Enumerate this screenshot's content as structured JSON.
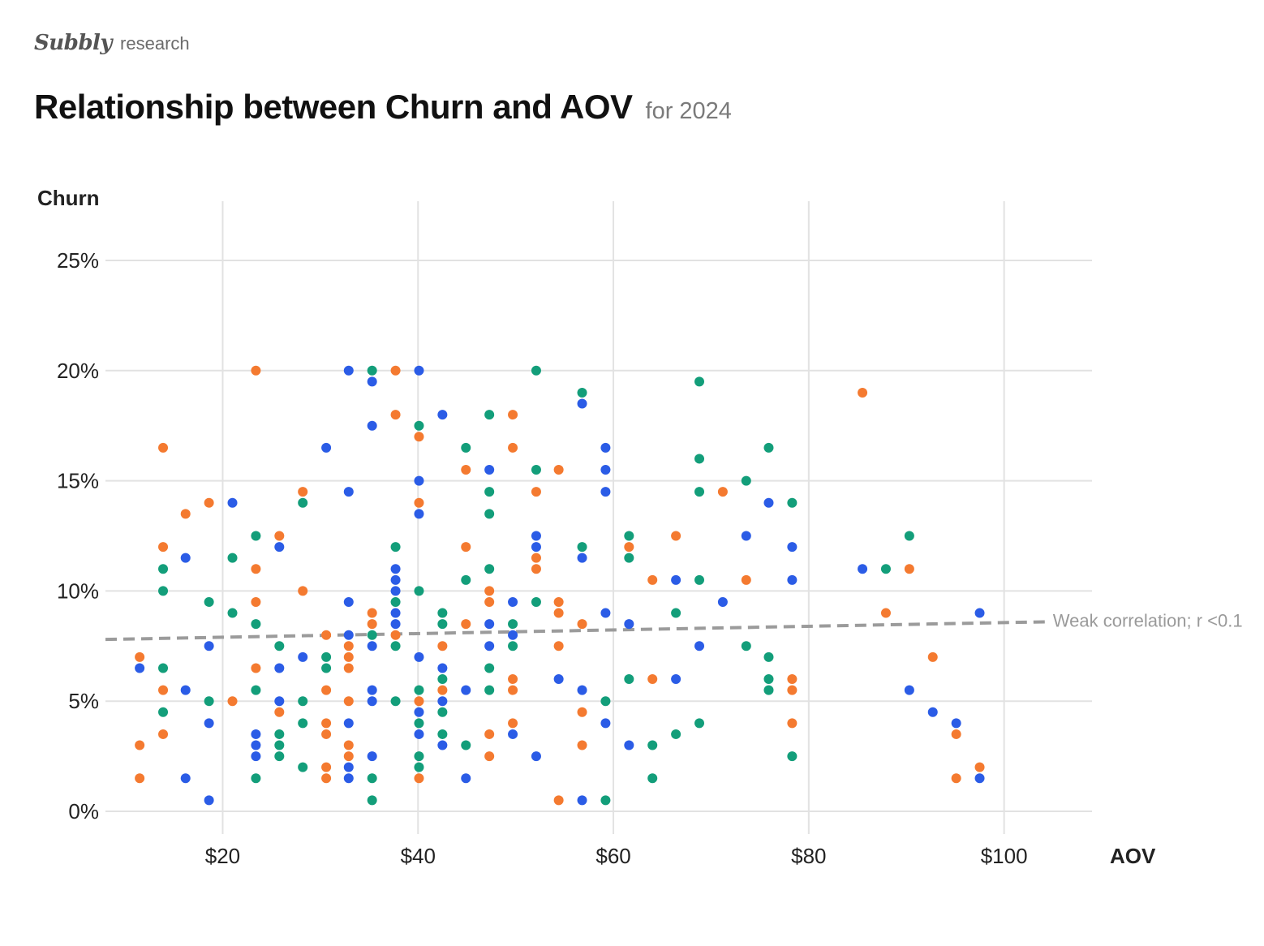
{
  "brand": {
    "logo": "Subbly",
    "sub": "research"
  },
  "chart_data": {
    "type": "scatter",
    "title": "Relationship between Churn and AOV",
    "subtitle": "for 2024",
    "xlabel": "AOV",
    "ylabel": "Churn",
    "xlim": [
      8,
      109
    ],
    "ylim": [
      0,
      25
    ],
    "x_ticks": [
      20,
      40,
      60,
      80,
      100
    ],
    "x_tick_labels": [
      "$20",
      "$40",
      "$60",
      "$80",
      "$100"
    ],
    "y_ticks": [
      0,
      5,
      10,
      15,
      20,
      25
    ],
    "y_tick_labels": [
      "0%",
      "5%",
      "10%",
      "15%",
      "20%",
      "25%"
    ],
    "grid": true,
    "colors": {
      "blue": "#2b5ce6",
      "orange": "#f47a30",
      "green": "#139e7a",
      "grid": "#e2e2e2",
      "trend": "#9b9b9b"
    },
    "trendline": {
      "x": [
        8,
        104
      ],
      "y": [
        7.8,
        8.6
      ],
      "label": "Weak correlation; r <0.1"
    },
    "series": [
      {
        "color": "blue",
        "points": [
          [
            11.5,
            6.5
          ],
          [
            16.2,
            11.5
          ],
          [
            16.2,
            5.5
          ],
          [
            16.2,
            1.5
          ],
          [
            18.6,
            7.5
          ],
          [
            18.6,
            4
          ],
          [
            18.6,
            0.5
          ],
          [
            21,
            14
          ],
          [
            23.4,
            3.5
          ],
          [
            23.4,
            3
          ],
          [
            23.4,
            2.5
          ],
          [
            25.8,
            12
          ],
          [
            25.8,
            6.5
          ],
          [
            25.8,
            5
          ],
          [
            28.2,
            7
          ],
          [
            30.6,
            16.5
          ],
          [
            32.9,
            20
          ],
          [
            32.9,
            14.5
          ],
          [
            32.9,
            9.5
          ],
          [
            32.9,
            8
          ],
          [
            32.9,
            4
          ],
          [
            32.9,
            2
          ],
          [
            32.9,
            1.5
          ],
          [
            35.3,
            19.5
          ],
          [
            35.3,
            17.5
          ],
          [
            35.3,
            7.5
          ],
          [
            35.3,
            5.5
          ],
          [
            35.3,
            5
          ],
          [
            35.3,
            2.5
          ],
          [
            37.7,
            11
          ],
          [
            37.7,
            10.5
          ],
          [
            37.7,
            10
          ],
          [
            37.7,
            9
          ],
          [
            37.7,
            8.5
          ],
          [
            40.1,
            20
          ],
          [
            40.1,
            15
          ],
          [
            40.1,
            13.5
          ],
          [
            40.1,
            7
          ],
          [
            40.1,
            4.5
          ],
          [
            40.1,
            3.5
          ],
          [
            42.5,
            18
          ],
          [
            42.5,
            6.5
          ],
          [
            42.5,
            5
          ],
          [
            42.5,
            3
          ],
          [
            44.9,
            5.5
          ],
          [
            44.9,
            1.5
          ],
          [
            47.3,
            15.5
          ],
          [
            47.3,
            8.5
          ],
          [
            47.3,
            7.5
          ],
          [
            49.7,
            9.5
          ],
          [
            49.7,
            8
          ],
          [
            49.7,
            3.5
          ],
          [
            52.1,
            12.5
          ],
          [
            52.1,
            12
          ],
          [
            52.1,
            2.5
          ],
          [
            54.4,
            6
          ],
          [
            56.8,
            18.5
          ],
          [
            56.8,
            11.5
          ],
          [
            56.8,
            5.5
          ],
          [
            56.8,
            0.5
          ],
          [
            59.2,
            16.5
          ],
          [
            59.2,
            15.5
          ],
          [
            59.2,
            14.5
          ],
          [
            59.2,
            9
          ],
          [
            59.2,
            4
          ],
          [
            61.6,
            8.5
          ],
          [
            61.6,
            3
          ],
          [
            66.4,
            10.5
          ],
          [
            66.4,
            6
          ],
          [
            68.8,
            7.5
          ],
          [
            71.2,
            9.5
          ],
          [
            73.6,
            12.5
          ],
          [
            75.9,
            14
          ],
          [
            78.3,
            12
          ],
          [
            78.3,
            10.5
          ],
          [
            85.5,
            11
          ],
          [
            90.3,
            5.5
          ],
          [
            92.7,
            4.5
          ],
          [
            95.1,
            4
          ],
          [
            97.5,
            9
          ],
          [
            97.5,
            1.5
          ]
        ]
      },
      {
        "color": "orange",
        "points": [
          [
            11.5,
            7
          ],
          [
            11.5,
            3
          ],
          [
            11.5,
            1.5
          ],
          [
            13.9,
            16.5
          ],
          [
            13.9,
            12
          ],
          [
            13.9,
            5.5
          ],
          [
            13.9,
            3.5
          ],
          [
            16.2,
            13.5
          ],
          [
            18.6,
            14
          ],
          [
            21,
            5
          ],
          [
            23.4,
            20
          ],
          [
            23.4,
            11
          ],
          [
            23.4,
            9.5
          ],
          [
            23.4,
            6.5
          ],
          [
            25.8,
            12.5
          ],
          [
            25.8,
            4.5
          ],
          [
            28.2,
            14.5
          ],
          [
            28.2,
            10
          ],
          [
            30.6,
            8
          ],
          [
            30.6,
            5.5
          ],
          [
            30.6,
            4
          ],
          [
            30.6,
            3.5
          ],
          [
            30.6,
            2
          ],
          [
            30.6,
            1.5
          ],
          [
            32.9,
            7.5
          ],
          [
            32.9,
            7
          ],
          [
            32.9,
            6.5
          ],
          [
            32.9,
            5
          ],
          [
            32.9,
            3
          ],
          [
            32.9,
            2.5
          ],
          [
            35.3,
            9
          ],
          [
            35.3,
            8.5
          ],
          [
            37.7,
            20
          ],
          [
            37.7,
            18
          ],
          [
            37.7,
            8
          ],
          [
            40.1,
            17
          ],
          [
            40.1,
            14
          ],
          [
            40.1,
            5
          ],
          [
            40.1,
            1.5
          ],
          [
            42.5,
            7.5
          ],
          [
            42.5,
            5.5
          ],
          [
            44.9,
            15.5
          ],
          [
            44.9,
            12
          ],
          [
            44.9,
            8.5
          ],
          [
            47.3,
            10
          ],
          [
            47.3,
            9.5
          ],
          [
            47.3,
            3.5
          ],
          [
            47.3,
            2.5
          ],
          [
            49.7,
            18
          ],
          [
            49.7,
            16.5
          ],
          [
            49.7,
            6
          ],
          [
            49.7,
            5.5
          ],
          [
            49.7,
            4
          ],
          [
            52.1,
            14.5
          ],
          [
            52.1,
            11.5
          ],
          [
            52.1,
            11
          ],
          [
            54.4,
            15.5
          ],
          [
            54.4,
            9.5
          ],
          [
            54.4,
            9
          ],
          [
            54.4,
            7.5
          ],
          [
            54.4,
            0.5
          ],
          [
            56.8,
            8.5
          ],
          [
            56.8,
            4.5
          ],
          [
            56.8,
            3
          ],
          [
            61.6,
            12
          ],
          [
            64,
            10.5
          ],
          [
            64,
            6
          ],
          [
            66.4,
            12.5
          ],
          [
            71.2,
            14.5
          ],
          [
            73.6,
            10.5
          ],
          [
            78.3,
            6
          ],
          [
            78.3,
            5.5
          ],
          [
            78.3,
            4
          ],
          [
            85.5,
            19
          ],
          [
            87.9,
            9
          ],
          [
            90.3,
            11
          ],
          [
            92.7,
            7
          ],
          [
            95.1,
            3.5
          ],
          [
            95.1,
            1.5
          ],
          [
            97.5,
            2
          ]
        ]
      },
      {
        "color": "green",
        "points": [
          [
            13.9,
            11
          ],
          [
            13.9,
            10
          ],
          [
            13.9,
            6.5
          ],
          [
            13.9,
            4.5
          ],
          [
            18.6,
            9.5
          ],
          [
            18.6,
            5
          ],
          [
            21,
            11.5
          ],
          [
            21,
            9
          ],
          [
            23.4,
            12.5
          ],
          [
            23.4,
            8.5
          ],
          [
            23.4,
            5.5
          ],
          [
            23.4,
            1.5
          ],
          [
            25.8,
            7.5
          ],
          [
            25.8,
            3.5
          ],
          [
            25.8,
            3
          ],
          [
            25.8,
            2.5
          ],
          [
            28.2,
            14
          ],
          [
            28.2,
            5
          ],
          [
            28.2,
            4
          ],
          [
            28.2,
            2
          ],
          [
            30.6,
            7
          ],
          [
            30.6,
            6.5
          ],
          [
            35.3,
            20
          ],
          [
            35.3,
            8
          ],
          [
            35.3,
            1.5
          ],
          [
            35.3,
            0.5
          ],
          [
            37.7,
            12
          ],
          [
            37.7,
            9.5
          ],
          [
            37.7,
            7.5
          ],
          [
            37.7,
            5
          ],
          [
            40.1,
            17.5
          ],
          [
            40.1,
            10
          ],
          [
            40.1,
            5.5
          ],
          [
            40.1,
            4
          ],
          [
            40.1,
            2.5
          ],
          [
            40.1,
            2
          ],
          [
            42.5,
            9
          ],
          [
            42.5,
            8.5
          ],
          [
            42.5,
            6
          ],
          [
            42.5,
            4.5
          ],
          [
            42.5,
            3.5
          ],
          [
            44.9,
            16.5
          ],
          [
            44.9,
            10.5
          ],
          [
            44.9,
            3
          ],
          [
            47.3,
            18
          ],
          [
            47.3,
            14.5
          ],
          [
            47.3,
            13.5
          ],
          [
            47.3,
            11
          ],
          [
            47.3,
            6.5
          ],
          [
            47.3,
            5.5
          ],
          [
            49.7,
            8.5
          ],
          [
            49.7,
            7.5
          ],
          [
            52.1,
            20
          ],
          [
            52.1,
            15.5
          ],
          [
            52.1,
            9.5
          ],
          [
            56.8,
            19
          ],
          [
            56.8,
            12
          ],
          [
            59.2,
            5
          ],
          [
            59.2,
            0.5
          ],
          [
            61.6,
            12.5
          ],
          [
            61.6,
            11.5
          ],
          [
            61.6,
            6
          ],
          [
            64,
            3
          ],
          [
            64,
            1.5
          ],
          [
            66.4,
            9
          ],
          [
            66.4,
            3.5
          ],
          [
            68.8,
            19.5
          ],
          [
            68.8,
            16
          ],
          [
            68.8,
            14.5
          ],
          [
            68.8,
            10.5
          ],
          [
            68.8,
            4
          ],
          [
            73.6,
            15
          ],
          [
            73.6,
            7.5
          ],
          [
            75.9,
            16.5
          ],
          [
            75.9,
            7
          ],
          [
            75.9,
            6
          ],
          [
            75.9,
            5.5
          ],
          [
            78.3,
            14
          ],
          [
            78.3,
            2.5
          ],
          [
            87.9,
            11
          ],
          [
            90.3,
            12.5
          ]
        ]
      }
    ]
  }
}
